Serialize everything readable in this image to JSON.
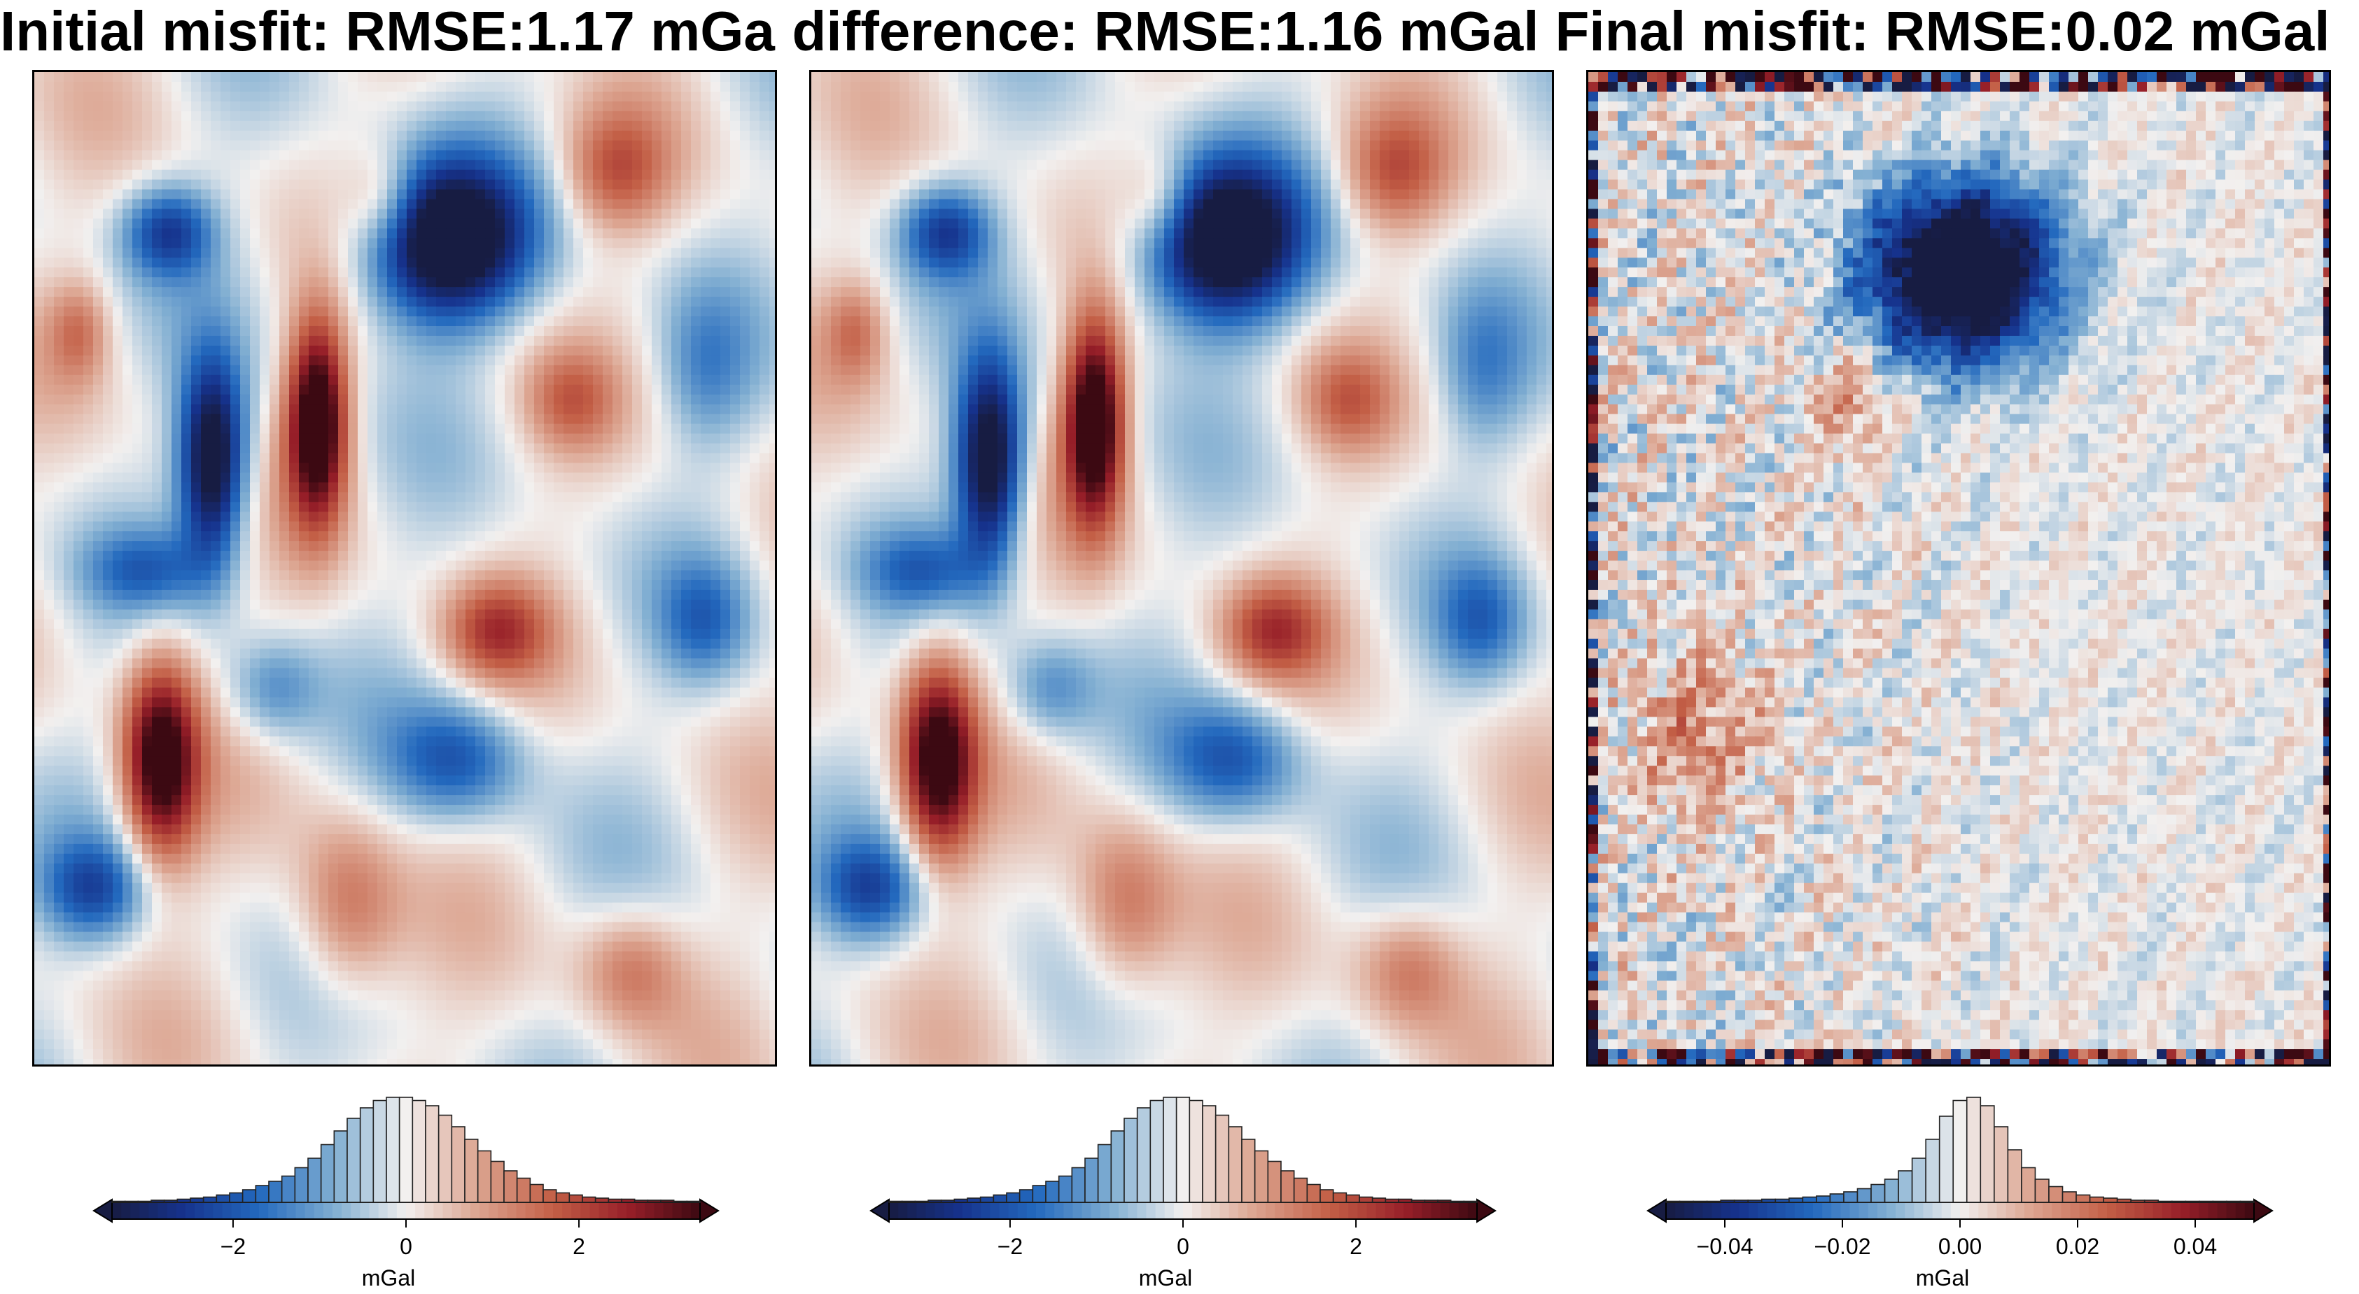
{
  "chart_data": [
    {
      "type": "heatmap",
      "title": "Initial misfit: RMSE:1.17 mGal",
      "colormap": "balance (diverging: navy-blue-white-red-dark red)",
      "colorbar": {
        "label": "mGal",
        "range": [
          -3.4,
          3.4
        ],
        "ticks": [
          -2,
          0,
          2
        ],
        "tick_labels": [
          "−2",
          "0",
          "2"
        ],
        "histogram_bins": [
          0.01,
          0.01,
          0.01,
          0.02,
          0.02,
          0.03,
          0.04,
          0.05,
          0.07,
          0.09,
          0.12,
          0.16,
          0.2,
          0.25,
          0.33,
          0.42,
          0.55,
          0.68,
          0.8,
          0.9,
          0.97,
          1.0,
          1.0,
          0.97,
          0.92,
          0.83,
          0.72,
          0.6,
          0.49,
          0.39,
          0.3,
          0.23,
          0.17,
          0.12,
          0.09,
          0.07,
          0.05,
          0.04,
          0.03,
          0.03,
          0.02,
          0.02,
          0.02,
          0.01,
          0.01
        ]
      }
    },
    {
      "type": "heatmap",
      "title": "difference: RMSE:1.16 mGal",
      "colormap": "balance (diverging: navy-blue-white-red-dark red)",
      "colorbar": {
        "label": "mGal",
        "range": [
          -3.4,
          3.4
        ],
        "ticks": [
          -2,
          0,
          2
        ],
        "tick_labels": [
          "−2",
          "0",
          "2"
        ],
        "histogram_bins": [
          0.01,
          0.01,
          0.01,
          0.02,
          0.02,
          0.03,
          0.04,
          0.05,
          0.07,
          0.09,
          0.12,
          0.16,
          0.2,
          0.25,
          0.33,
          0.42,
          0.55,
          0.68,
          0.8,
          0.9,
          0.97,
          1.0,
          1.0,
          0.97,
          0.92,
          0.83,
          0.72,
          0.6,
          0.49,
          0.39,
          0.3,
          0.23,
          0.17,
          0.12,
          0.09,
          0.07,
          0.05,
          0.04,
          0.03,
          0.03,
          0.02,
          0.02,
          0.02,
          0.01,
          0.01
        ]
      }
    },
    {
      "type": "heatmap",
      "title": "Final misfit: RMSE:0.02 mGal",
      "colormap": "balance (diverging: navy-blue-white-red-dark red)",
      "colorbar": {
        "label": "mGal",
        "range": [
          -0.05,
          0.05
        ],
        "ticks": [
          -0.04,
          -0.02,
          0.0,
          0.02,
          0.04
        ],
        "tick_labels": [
          "−0.04",
          "−0.02",
          "0.00",
          "0.02",
          "0.04"
        ],
        "histogram_bins": [
          0.01,
          0.01,
          0.01,
          0.01,
          0.02,
          0.02,
          0.02,
          0.03,
          0.03,
          0.04,
          0.05,
          0.06,
          0.08,
          0.1,
          0.13,
          0.17,
          0.22,
          0.3,
          0.42,
          0.6,
          0.82,
          0.97,
          1.0,
          0.92,
          0.72,
          0.5,
          0.33,
          0.22,
          0.15,
          0.1,
          0.07,
          0.05,
          0.04,
          0.03,
          0.02,
          0.02,
          0.01,
          0.01,
          0.01,
          0.01,
          0.01,
          0.01,
          0.01
        ]
      }
    }
  ]
}
